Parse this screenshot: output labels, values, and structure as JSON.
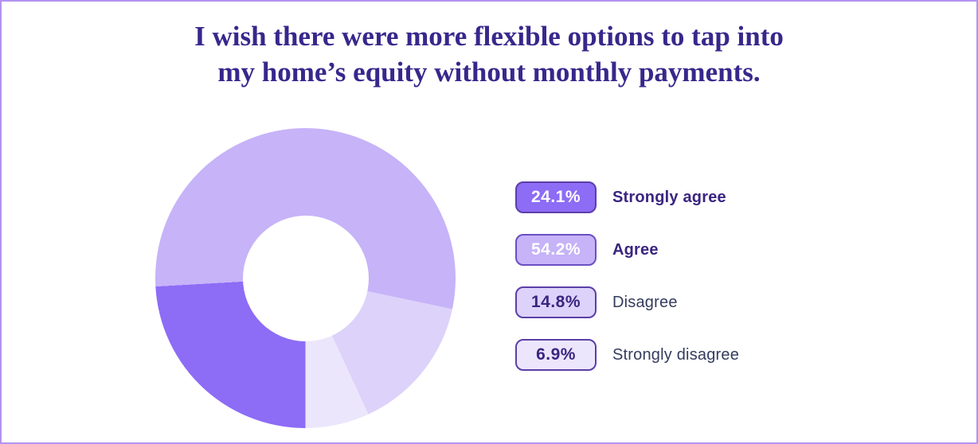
{
  "frame": {
    "border_color": "#b493f1",
    "background": "#ffffff"
  },
  "title": {
    "line1": "I wish there were more flexible options to tap into",
    "line2": "my home’s equity without monthly payments.",
    "color": "#38278c"
  },
  "chart_data": {
    "type": "pie",
    "variant": "donut",
    "title": "I wish there were more flexible options to tap into my home’s equity without monthly payments.",
    "categories": [
      "Strongly agree",
      "Agree",
      "Disagree",
      "Strongly disagree"
    ],
    "values": [
      24.1,
      54.2,
      14.8,
      6.9
    ],
    "value_labels": [
      "24.1%",
      "54.2%",
      "14.8%",
      "6.9%"
    ],
    "colors": [
      "#8d6cf6",
      "#c6b3f8",
      "#ddd2fa",
      "#ece6fc"
    ],
    "start_angle_deg": 180,
    "direction": "clockwise",
    "inner_radius_ratio": 0.42,
    "legend_position": "right",
    "grid": false
  },
  "legend": {
    "items": [
      {
        "value": "24.1%",
        "label": "Strongly agree",
        "badge_bg": "#8d6cf6",
        "badge_text": "#ffffff",
        "badge_border": "#5b3fa8",
        "label_color": "#3a2580",
        "label_weight": "bold"
      },
      {
        "value": "54.2%",
        "label": "Agree",
        "badge_bg": "#c6b3f8",
        "badge_text": "#ffffff",
        "badge_border": "#6a4fc4",
        "label_color": "#3a2580",
        "label_weight": "bold"
      },
      {
        "value": "14.8%",
        "label": "Disagree",
        "badge_bg": "#ddd2fa",
        "badge_text": "#3a2580",
        "badge_border": "#5b3fa8",
        "label_color": "#333c5e",
        "label_weight": "normal"
      },
      {
        "value": "6.9%",
        "label": "Strongly disagree",
        "badge_bg": "#ece6fc",
        "badge_text": "#3a2580",
        "badge_border": "#5b3fa8",
        "label_color": "#333c5e",
        "label_weight": "normal"
      }
    ]
  }
}
